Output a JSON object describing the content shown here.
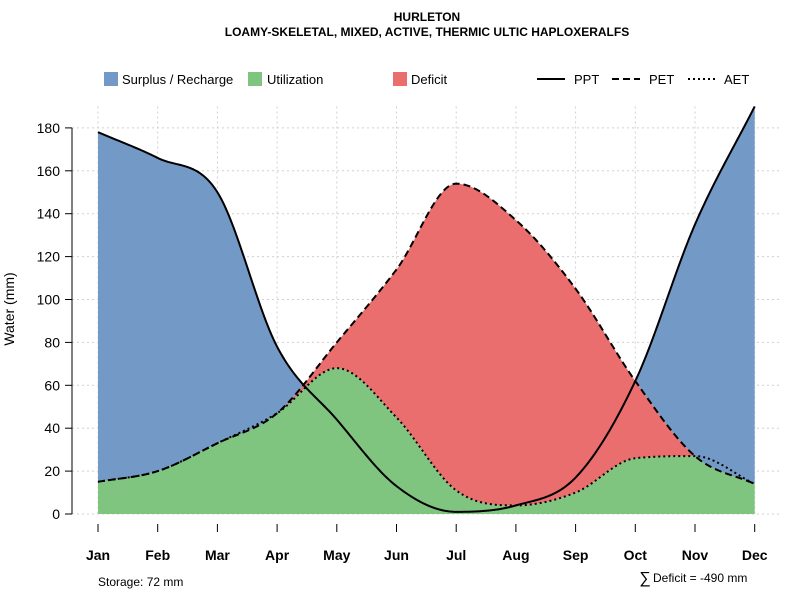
{
  "chart_data": {
    "type": "area",
    "title": "HURLETON",
    "subtitle": "LOAMY-SKELETAL, MIXED, ACTIVE, THERMIC ULTIC HAPLOXERALFS",
    "ylabel": "Water (mm)",
    "xlabel": "",
    "ylim": [
      0,
      190
    ],
    "yticks": [
      0,
      20,
      40,
      60,
      80,
      100,
      120,
      140,
      160,
      180
    ],
    "grid": true,
    "categories": [
      "Jan",
      "Feb",
      "Mar",
      "Apr",
      "May",
      "Jun",
      "Jul",
      "Aug",
      "Sep",
      "Oct",
      "Nov",
      "Dec"
    ],
    "series": [
      {
        "name": "PPT",
        "line_style": "solid",
        "values": [
          178,
          166,
          150,
          78,
          44,
          13,
          1,
          4,
          17,
          62,
          135,
          190
        ]
      },
      {
        "name": "PET",
        "line_style": "dashed",
        "values": [
          15,
          20,
          33,
          47,
          80,
          114,
          154,
          137,
          105,
          62,
          27,
          14
        ]
      },
      {
        "name": "AET",
        "line_style": "dotted",
        "values": [
          15,
          20,
          33,
          47,
          68,
          45,
          11,
          4,
          10,
          26,
          27,
          14
        ]
      }
    ],
    "areas": [
      {
        "name": "Surplus / Recharge",
        "color": "#7399C6"
      },
      {
        "name": "Utilization",
        "color": "#7FC57F"
      },
      {
        "name": "Deficit",
        "color": "#EB6E6E"
      }
    ],
    "legend_position": "top",
    "annotations": {
      "storage": "Storage: 72 mm",
      "deficit_symbol": "∑",
      "deficit": "Deficit = -490 mm"
    }
  }
}
